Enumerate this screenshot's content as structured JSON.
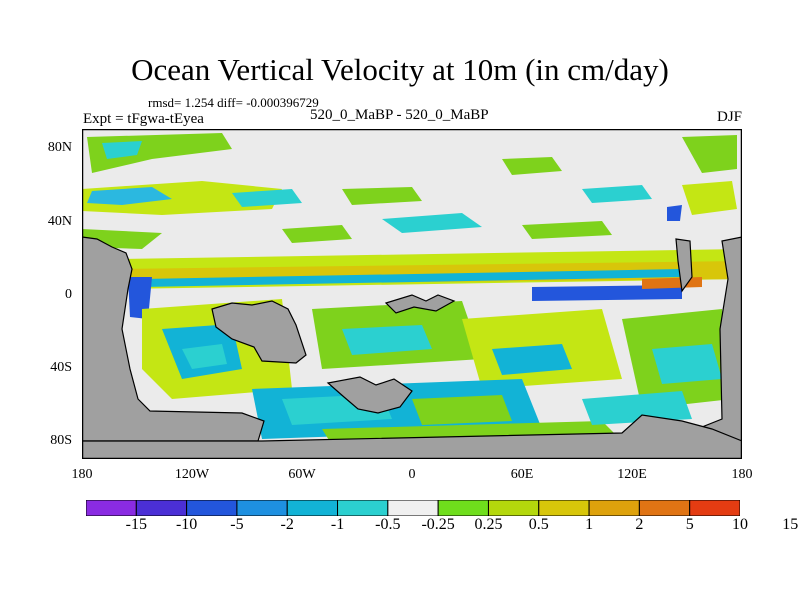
{
  "title": "Ocean Vertical Velocity at 10m (in cm/day)",
  "stats": "rmsd= 1.254 diff= -0.000396729",
  "experiment": "Expt = tFgwa-tEyea",
  "case_label": "520_0_MaBP - 520_0_MaBP",
  "season": "DJF",
  "map": {
    "projection": "cylindrical equidistant",
    "lon_range": [
      -180,
      180
    ],
    "lat_range": [
      -90,
      90
    ],
    "y_ticks": [
      {
        "label": "80N",
        "lat": 80
      },
      {
        "label": "40N",
        "lat": 40
      },
      {
        "label": "0",
        "lat": 0
      },
      {
        "label": "40S",
        "lat": -40
      },
      {
        "label": "80S",
        "lat": -80
      }
    ],
    "x_ticks": [
      {
        "label": "180",
        "lon": -180
      },
      {
        "label": "120W",
        "lon": -120
      },
      {
        "label": "60W",
        "lon": -60
      },
      {
        "label": "0",
        "lon": 0
      },
      {
        "label": "60E",
        "lon": 60
      },
      {
        "label": "120E",
        "lon": 120
      },
      {
        "label": "180",
        "lon": 180
      }
    ],
    "land_color": "#a0a0a0",
    "background_color": "#ebebeb"
  },
  "colorbar": {
    "colors": [
      "#8a2be2",
      "#4b2fd6",
      "#2356dc",
      "#1e90e0",
      "#12b3d6",
      "#2bd0d0",
      "#f0f0f0",
      "#6fde1c",
      "#b4d80c",
      "#d8c60a",
      "#dea20c",
      "#e07414",
      "#e43c12"
    ],
    "labels": [
      "-15",
      "-10",
      "-5",
      "-2",
      "-1",
      "-0.5",
      "-0.25",
      "0.25",
      "0.5",
      "1",
      "2",
      "5",
      "10",
      "15"
    ]
  }
}
